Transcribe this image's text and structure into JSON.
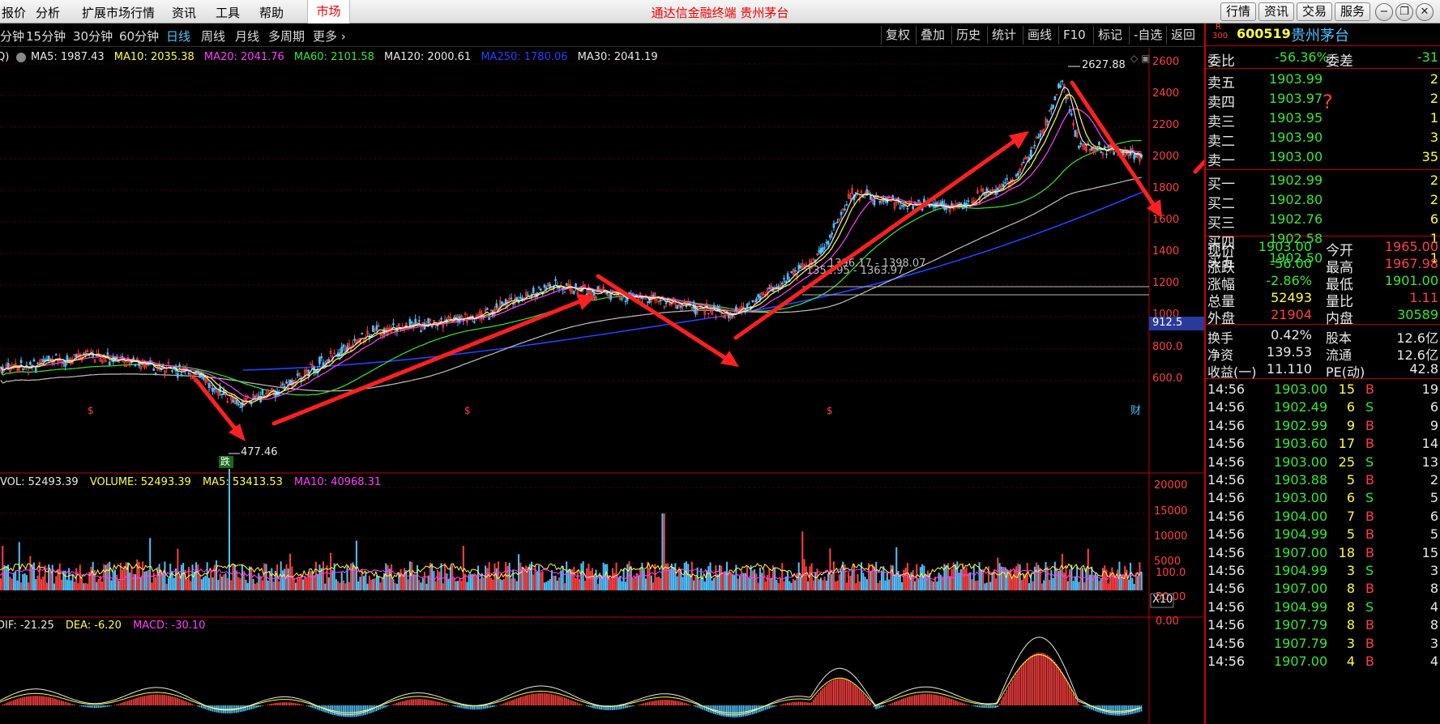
{
  "menu": {
    "items": [
      "报价",
      "分析",
      "扩展市场行情",
      "资讯",
      "工具",
      "帮助"
    ],
    "market": "市场",
    "title": "通达信金融终端 贵州茅台",
    "right_buttons": [
      "行情",
      "资讯",
      "交易",
      "服务"
    ]
  },
  "periods": {
    "items": [
      "分钟",
      "15分钟",
      "30分钟",
      "60分钟",
      "日线",
      "周线",
      "月线",
      "多周期",
      "更多 ›"
    ],
    "active": "日线"
  },
  "toolbar": [
    "复权",
    "叠加",
    "历史",
    "统计",
    "画线",
    "F10",
    "标记",
    "-自选",
    "返回"
  ],
  "colors": {
    "up": "#ff4040",
    "down": "#39e639",
    "ma5": "#e8e8e8",
    "ma10": "#ffff40",
    "ma20": "#ff40ff",
    "ma60": "#39e639",
    "ma120": "#c0c0c0",
    "ma250": "#2244ff",
    "cyan": "#4ec3ff",
    "frame": "#c00000",
    "annotation": "#ff2020"
  },
  "ma_legend": [
    {
      "label": "MA5: 1987.43",
      "color": "#e8e8e8"
    },
    {
      "label": "MA10: 2035.38",
      "color": "#ffff40"
    },
    {
      "label": "MA20: 2041.76",
      "color": "#ff40ff"
    },
    {
      "label": "MA60: 2101.58",
      "color": "#39e639"
    },
    {
      "label": "MA120: 2000.61",
      "color": "#e8e8e8"
    },
    {
      "label": "MA250: 1780.06",
      "color": "#2244ff"
    },
    {
      "label": "MA30: 2041.19",
      "color": "#e8e8e8"
    }
  ],
  "ma_legend_prefix": "Q)",
  "annotations": {
    "high": "2627.88",
    "low": "477.46",
    "box1": "1396.17 - 1398.07",
    "box2": "1352.95 - 1363.97",
    "fall_tag": "跌",
    "fin_tag": "财",
    "price_tag": "912.5",
    "vol_multiplier": "X10",
    "question": "?",
    "s_marks": [
      "$",
      "$",
      "$"
    ]
  },
  "vol_legend": [
    {
      "label": "VOL: 52493.39",
      "color": "#e8e8e8"
    },
    {
      "label": "VOLUME: 52493.39",
      "color": "#ffff40"
    },
    {
      "label": "MA5: 53413.53",
      "color": "#ffff40"
    },
    {
      "label": "MA10: 40968.31",
      "color": "#ff40ff"
    }
  ],
  "macd_legend": [
    {
      "label": "DIF: -21.25",
      "color": "#e8e8e8"
    },
    {
      "label": "DEA: -6.20",
      "color": "#ffff40"
    },
    {
      "label": "MACD: -30.10",
      "color": "#ff40ff"
    }
  ],
  "y_axis": {
    "price": [
      "2600",
      "2400",
      "2200",
      "2000",
      "1800",
      "1600",
      "1400",
      "1200",
      "1000",
      "800.0",
      "600.0"
    ],
    "volume": [
      "20000",
      "15000",
      "10000",
      "5000"
    ],
    "macd": [
      "100.0",
      "50.00",
      "0.00"
    ]
  },
  "chart_data": [
    {
      "type": "line",
      "title": "贵州茅台 日线",
      "ylim": [
        477.46,
        2627.88
      ],
      "series": [
        {
          "name": "MA5",
          "values": [
            1987.43
          ]
        },
        {
          "name": "MA10",
          "values": [
            2035.38
          ]
        },
        {
          "name": "MA20",
          "values": [
            2041.76
          ]
        },
        {
          "name": "MA60",
          "values": [
            2101.58
          ]
        },
        {
          "name": "MA120",
          "values": [
            2000.61
          ]
        },
        {
          "name": "MA250",
          "values": [
            1780.06
          ]
        },
        {
          "name": "MA30",
          "values": [
            2041.19
          ]
        }
      ]
    },
    {
      "type": "bar",
      "title": "VOLUME",
      "series": [
        {
          "name": "VOLUME",
          "values": [
            52493.39
          ]
        },
        {
          "name": "MA5",
          "values": [
            53413.53
          ]
        },
        {
          "name": "MA10",
          "values": [
            40968.31
          ]
        }
      ]
    },
    {
      "type": "line",
      "title": "MACD",
      "series": [
        {
          "name": "DIF",
          "values": [
            -21.25
          ]
        },
        {
          "name": "DEA",
          "values": [
            -6.2
          ]
        },
        {
          "name": "MACD",
          "values": [
            -30.1
          ]
        }
      ]
    }
  ],
  "quote": {
    "badge_top": "R",
    "badge_bottom": "300",
    "code": "600519",
    "name": "贵州茅台",
    "weibi_label": "委比",
    "weibi": "-56.36%",
    "weicha_label": "委差",
    "weicha": "-31",
    "asks": [
      {
        "label": "卖五",
        "price": "1903.99",
        "vol": "2"
      },
      {
        "label": "卖四",
        "price": "1903.97",
        "vol": "2"
      },
      {
        "label": "卖三",
        "price": "1903.95",
        "vol": "1"
      },
      {
        "label": "卖二",
        "price": "1903.90",
        "vol": "3"
      },
      {
        "label": "卖一",
        "price": "1903.00",
        "vol": "35"
      }
    ],
    "bids": [
      {
        "label": "买一",
        "price": "1902.99",
        "vol": "2"
      },
      {
        "label": "买二",
        "price": "1902.80",
        "vol": "2"
      },
      {
        "label": "买三",
        "price": "1902.76",
        "vol": "6"
      },
      {
        "label": "买四",
        "price": "1902.58",
        "vol": "1"
      },
      {
        "label": "买五",
        "price": "1902.50",
        "vol": "1"
      }
    ],
    "stats": [
      {
        "l1": "现价",
        "v1": "1903.00",
        "c1": "g",
        "l2": "今开",
        "v2": "1965.00",
        "c2": "r"
      },
      {
        "l1": "涨跌",
        "v1": "-56.00",
        "c1": "g",
        "l2": "最高",
        "v2": "1967.98",
        "c2": "r"
      },
      {
        "l1": "涨幅",
        "v1": "-2.86%",
        "c1": "g",
        "l2": "最低",
        "v2": "1901.00",
        "c2": "g"
      },
      {
        "l1": "总量",
        "v1": "52493",
        "c1": "y",
        "l2": "量比",
        "v2": "1.11",
        "c2": "r"
      },
      {
        "l1": "外盘",
        "v1": "21904",
        "c1": "r",
        "l2": "内盘",
        "v2": "30589",
        "c2": "g"
      }
    ],
    "stats2": [
      {
        "l1": "换手",
        "v1": "0.42%",
        "l2": "股本",
        "v2": "12.6亿"
      },
      {
        "l1": "净资",
        "v1": "139.53",
        "l2": "流通",
        "v2": "12.6亿"
      },
      {
        "l1": "收益(一)",
        "v1": "11.110",
        "l2": "PE(动)",
        "v2": "42.8"
      }
    ],
    "ticks": [
      {
        "time": "14:56",
        "price": "1903.00",
        "vol": "15",
        "bs": "B",
        "n": "19"
      },
      {
        "time": "14:56",
        "price": "1902.49",
        "vol": "6",
        "bs": "S",
        "n": "6"
      },
      {
        "time": "14:56",
        "price": "1902.99",
        "vol": "9",
        "bs": "B",
        "n": "9"
      },
      {
        "time": "14:56",
        "price": "1903.60",
        "vol": "17",
        "bs": "B",
        "n": "14"
      },
      {
        "time": "14:56",
        "price": "1903.00",
        "vol": "25",
        "bs": "S",
        "n": "13"
      },
      {
        "time": "14:56",
        "price": "1903.88",
        "vol": "5",
        "bs": "B",
        "n": "2"
      },
      {
        "time": "14:56",
        "price": "1903.00",
        "vol": "6",
        "bs": "S",
        "n": "5"
      },
      {
        "time": "14:56",
        "price": "1904.00",
        "vol": "7",
        "bs": "B",
        "n": "6"
      },
      {
        "time": "14:56",
        "price": "1904.99",
        "vol": "5",
        "bs": "B",
        "n": "5"
      },
      {
        "time": "14:56",
        "price": "1907.00",
        "vol": "18",
        "bs": "B",
        "n": "15"
      },
      {
        "time": "14:56",
        "price": "1904.99",
        "vol": "3",
        "bs": "S",
        "n": "3"
      },
      {
        "time": "14:56",
        "price": "1907.00",
        "vol": "8",
        "bs": "B",
        "n": "8"
      },
      {
        "time": "14:56",
        "price": "1904.99",
        "vol": "8",
        "bs": "S",
        "n": "4"
      },
      {
        "time": "14:56",
        "price": "1907.79",
        "vol": "8",
        "bs": "B",
        "n": "8"
      },
      {
        "time": "14:56",
        "price": "1907.79",
        "vol": "3",
        "bs": "B",
        "n": "3"
      },
      {
        "time": "14:56",
        "price": "1907.00",
        "vol": "4",
        "bs": "B",
        "n": "4"
      }
    ]
  }
}
